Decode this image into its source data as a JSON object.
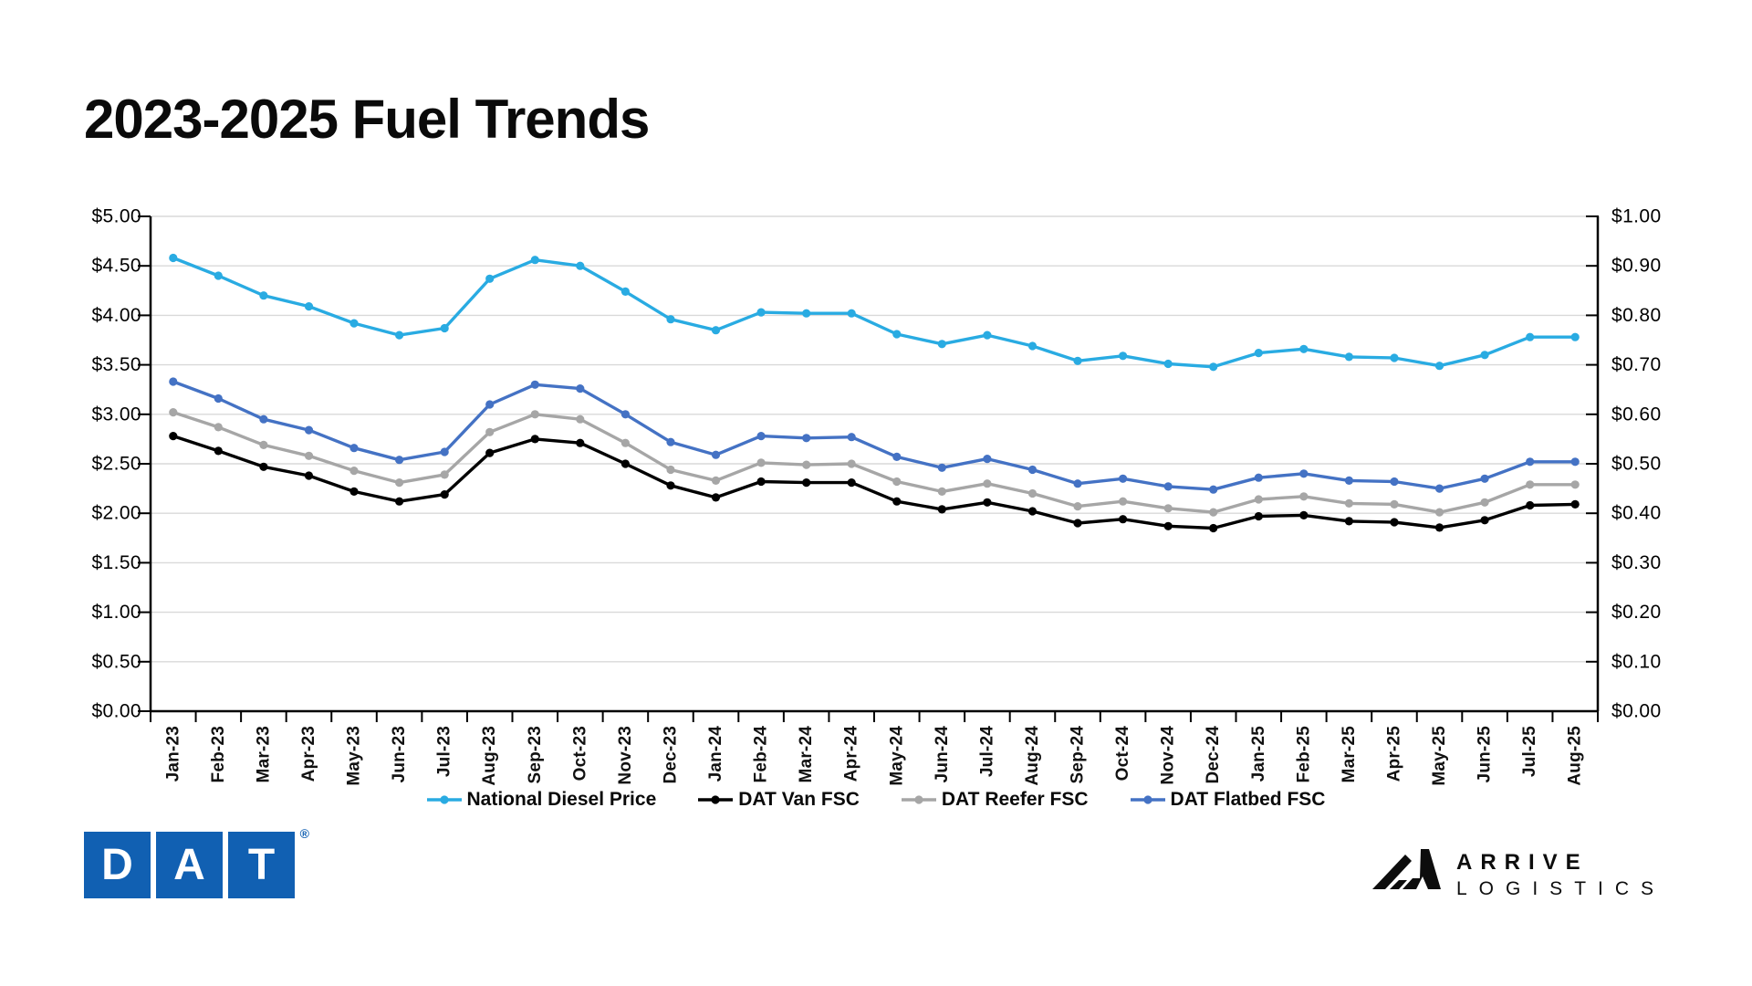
{
  "page": {
    "title": "2023-2025 Fuel Trends"
  },
  "footer": {
    "dat_logo_letters": [
      "D",
      "A",
      "T"
    ],
    "dat_registered": "®",
    "arrive_line1": "ARRIVE",
    "arrive_line2": "LOGISTICS"
  },
  "chart_data": {
    "type": "line",
    "title": "2023-2025 Fuel Trends",
    "grid": true,
    "legend_position": "bottom",
    "categories": [
      "Jan-23",
      "Feb-23",
      "Mar-23",
      "Apr-23",
      "May-23",
      "Jun-23",
      "Jul-23",
      "Aug-23",
      "Sep-23",
      "Oct-23",
      "Nov-23",
      "Dec-23",
      "Jan-24",
      "Feb-24",
      "Mar-24",
      "Apr-24",
      "May-24",
      "Jun-24",
      "Jul-24",
      "Aug-24",
      "Sep-24",
      "Oct-24",
      "Nov-24",
      "Dec-24",
      "Jan-25",
      "Feb-25",
      "Mar-25",
      "Apr-25",
      "May-25",
      "Jun-25",
      "Jul-25",
      "Aug-25"
    ],
    "left_axis": {
      "min": 0,
      "max": 5,
      "tick_step": 0.5,
      "labels": [
        "$0.00",
        "$0.50",
        "$1.00",
        "$1.50",
        "$2.00",
        "$2.50",
        "$3.00",
        "$3.50",
        "$4.00",
        "$4.50",
        "$5.00"
      ]
    },
    "right_axis": {
      "min": 0,
      "max": 1,
      "tick_step": 0.1,
      "labels": [
        "$0.00",
        "$0.10",
        "$0.20",
        "$0.30",
        "$0.40",
        "$0.50",
        "$0.60",
        "$0.70",
        "$0.80",
        "$0.90",
        "$1.00"
      ]
    },
    "series": [
      {
        "name": "National Diesel Price",
        "color": "#29ABE2",
        "axis": "left",
        "values": [
          4.58,
          4.4,
          4.2,
          4.09,
          3.92,
          3.8,
          3.87,
          4.37,
          4.56,
          4.5,
          4.24,
          3.96,
          3.85,
          4.03,
          4.02,
          4.02,
          3.81,
          3.71,
          3.8,
          3.69,
          3.54,
          3.59,
          3.51,
          3.48,
          3.62,
          3.66,
          3.58,
          3.57,
          3.49,
          3.6,
          3.78,
          3.78
        ]
      },
      {
        "name": "DAT Van FSC",
        "color": "#000000",
        "axis": "right",
        "values": [
          0.556,
          0.526,
          0.494,
          0.476,
          0.444,
          0.424,
          0.438,
          0.522,
          0.55,
          0.542,
          0.5,
          0.456,
          0.432,
          0.464,
          0.462,
          0.462,
          0.424,
          0.408,
          0.422,
          0.404,
          0.38,
          0.388,
          0.374,
          0.37,
          0.394,
          0.396,
          0.384,
          0.382,
          0.371,
          0.386,
          0.416,
          0.418
        ]
      },
      {
        "name": "DAT Reefer FSC",
        "color": "#A6A6A6",
        "axis": "right",
        "values": [
          0.604,
          0.574,
          0.538,
          0.516,
          0.486,
          0.462,
          0.478,
          0.564,
          0.6,
          0.59,
          0.542,
          0.488,
          0.466,
          0.502,
          0.498,
          0.5,
          0.464,
          0.444,
          0.46,
          0.44,
          0.414,
          0.424,
          0.41,
          0.402,
          0.428,
          0.434,
          0.42,
          0.418,
          0.402,
          0.422,
          0.458,
          0.458
        ]
      },
      {
        "name": "DAT Flatbed FSC",
        "color": "#4472C4",
        "axis": "right",
        "values": [
          0.666,
          0.632,
          0.59,
          0.568,
          0.532,
          0.508,
          0.524,
          0.62,
          0.66,
          0.652,
          0.6,
          0.544,
          0.518,
          0.556,
          0.552,
          0.554,
          0.514,
          0.492,
          0.51,
          0.488,
          0.46,
          0.47,
          0.454,
          0.448,
          0.472,
          0.48,
          0.466,
          0.464,
          0.45,
          0.47,
          0.504,
          0.504
        ]
      }
    ]
  }
}
